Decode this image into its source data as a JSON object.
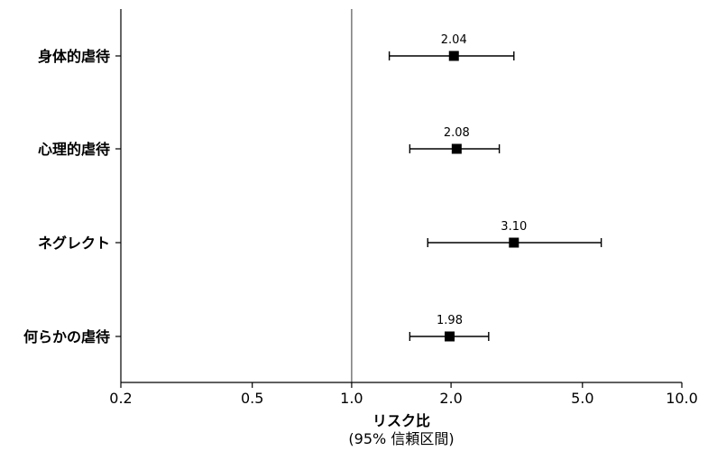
{
  "chart_data": {
    "type": "scatter",
    "subtype": "forest",
    "xscale": "log",
    "xlim": [
      0.2,
      10.0
    ],
    "xticks": [
      0.2,
      0.5,
      1.0,
      2.0,
      5.0,
      10.0
    ],
    "xtick_labels": [
      "0.2",
      "0.5",
      "1.0",
      "2.0",
      "5.0",
      "10.0"
    ],
    "reference_line": 1.0,
    "xlabel": "リスク比",
    "xlabel_sub": "(95% 信頼区間)",
    "grid": false,
    "rows": [
      {
        "label": "身体的虐待",
        "estimate": 2.04,
        "ci_low": 1.3,
        "ci_high": 3.1,
        "value_label": "2.04"
      },
      {
        "label": "心理的虐待",
        "estimate": 2.08,
        "ci_low": 1.5,
        "ci_high": 2.8,
        "value_label": "2.08"
      },
      {
        "label": "ネグレクト",
        "estimate": 3.1,
        "ci_low": 1.7,
        "ci_high": 5.7,
        "value_label": "3.10"
      },
      {
        "label": "何らかの虐待",
        "estimate": 1.98,
        "ci_low": 1.5,
        "ci_high": 2.6,
        "value_label": "1.98"
      }
    ],
    "colors": {
      "marker": "#000000",
      "axis": "#000000",
      "reference": "#555555"
    }
  }
}
